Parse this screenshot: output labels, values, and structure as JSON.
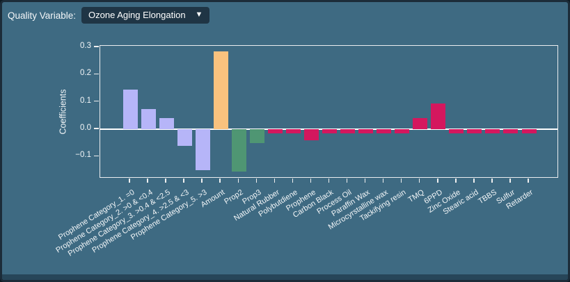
{
  "header": {
    "label": "Quality Variable:",
    "dropdown_value": "Ozone Aging Elongation",
    "dropdown_caret": "▼"
  },
  "colors": {
    "background": "#3e6a82",
    "window_border": "#1c2c39",
    "dropdown_bg": "#1f3545",
    "text": "#ffffff",
    "axis": "#f0f0f0",
    "bottom_bar": "#274659",
    "bar_lavender": "#b6b5f8",
    "bar_orange": "#f9c27e",
    "bar_green": "#4f9673",
    "bar_crimson": "#d4175e"
  },
  "chart_data": {
    "type": "bar",
    "title": "",
    "xlabel": "",
    "ylabel": "Coefficients",
    "ylim": [
      -0.18,
      0.305
    ],
    "grid": false,
    "legend": false,
    "yticks": [
      {
        "value": 0.3,
        "label": "0.3"
      },
      {
        "value": 0.2,
        "label": "0.2"
      },
      {
        "value": 0.1,
        "label": "0.1"
      },
      {
        "value": 0.0,
        "label": "0.0"
      },
      {
        "value": -0.1,
        "label": "−0.1"
      }
    ],
    "categories": [
      "Prophene Category_1.  =0",
      "Prophene Category_2.  >0 & <0.4",
      "Prophene Category_3.  >0.4 & <2.5",
      "Prophene Category_4.  >2.5 & <3",
      "Prophene Category_5.  >3",
      "Amount",
      "Prop2",
      "Prop3",
      "Natural Rubber",
      "Polybutdiene",
      "Prophene",
      "Carbon Black",
      "Process Oil",
      "Paraffin Wax",
      "Microcyrstalline wax",
      "Tackifying resin",
      "TMQ",
      "6PPD",
      "Zinc Oxide",
      "Stearic acid",
      "TBBS",
      "Sulfur",
      "Retarder"
    ],
    "values": [
      0.145,
      0.075,
      0.04,
      -0.06,
      -0.15,
      0.285,
      -0.155,
      -0.05,
      -0.015,
      -0.015,
      -0.04,
      -0.015,
      -0.015,
      -0.015,
      -0.015,
      -0.015,
      0.04,
      0.095,
      -0.015,
      -0.015,
      -0.015,
      -0.015,
      -0.015
    ],
    "bar_colors": [
      "#b6b5f8",
      "#b6b5f8",
      "#b6b5f8",
      "#b6b5f8",
      "#b6b5f8",
      "#f9c27e",
      "#4f9673",
      "#4f9673",
      "#d4175e",
      "#d4175e",
      "#d4175e",
      "#d4175e",
      "#d4175e",
      "#d4175e",
      "#d4175e",
      "#d4175e",
      "#d4175e",
      "#d4175e",
      "#d4175e",
      "#d4175e",
      "#d4175e",
      "#d4175e",
      "#d4175e"
    ]
  }
}
